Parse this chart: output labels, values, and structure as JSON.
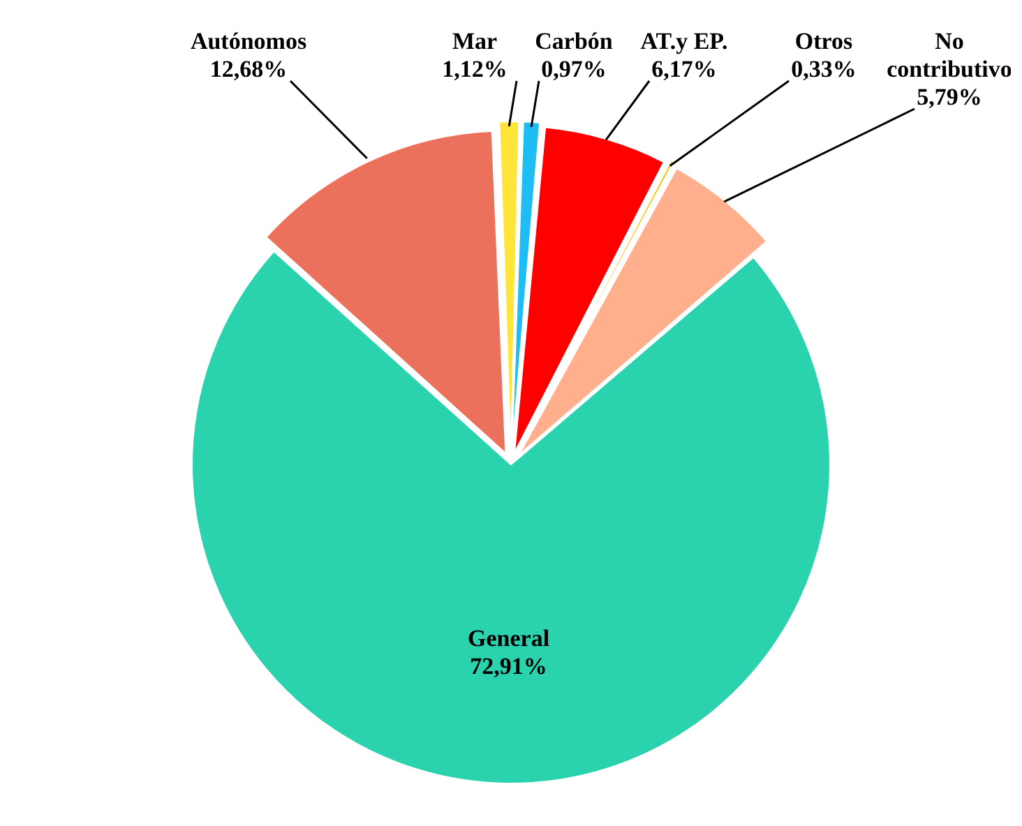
{
  "chart_data": {
    "type": "pie",
    "categories": [
      "General",
      "Autónomos",
      "Mar",
      "Carbón",
      "AT.y EP.",
      "Otros",
      "No contributivo"
    ],
    "values": [
      72.91,
      12.68,
      1.12,
      0.97,
      6.17,
      0.33,
      5.79
    ],
    "value_labels": [
      "72,91%",
      "12,68%",
      "1,12%",
      "0,97%",
      "6,17%",
      "0,33%",
      "5,79%"
    ],
    "colors": [
      "#2ad2ae",
      "#ec715c",
      "#ffe43a",
      "#1ebef5",
      "#ff0000",
      "#f5c400",
      "#ffaf8c"
    ]
  }
}
